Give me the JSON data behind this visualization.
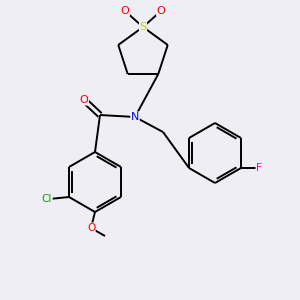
{
  "bg_color": "#eeeef4",
  "bond_color": "#000000",
  "atom_colors": {
    "O": "#ff0000",
    "N": "#0000ff",
    "S": "#cccc00",
    "Cl": "#00aa00",
    "F": "#ff00cc"
  },
  "lw": 1.4,
  "fs": 7.5
}
